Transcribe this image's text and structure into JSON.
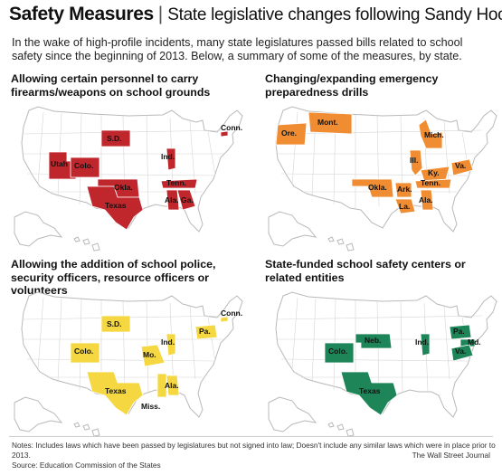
{
  "header": {
    "title": "Safety Measures",
    "separator": "|",
    "subtitle": "State legislative changes following Sandy Hook"
  },
  "intro": "In the wake of high-profile incidents, many state legislatures passed bills related to school safety since the beginning of 2013. Below, a summary of some of the measures, by state.",
  "colors": {
    "map_fill": "#ffffff",
    "map_stroke": "#b9b9b9",
    "firearms": "#c0272d",
    "drills": "#f08d32",
    "police": "#f5d741",
    "centers": "#1e8558"
  },
  "panels": [
    {
      "id": "firearms",
      "heading": "Allowing certain personnel to carry firearms/weapons on school grounds",
      "color_key": "firearms",
      "states": [
        "Utah",
        "Colo.",
        "S.D.",
        "Okla.",
        "Texas",
        "Ind.",
        "Tenn.",
        "Ala.",
        "Ga.",
        "Conn."
      ]
    },
    {
      "id": "drills",
      "heading": "Changing/expanding emergency preparedness drills",
      "color_key": "drills",
      "states": [
        "Ore.",
        "Mont.",
        "Mich.",
        "Ill.",
        "Ky.",
        "Va.",
        "Okla.",
        "Ark.",
        "Tenn.",
        "La.",
        "Ala."
      ]
    },
    {
      "id": "police",
      "heading": "Allowing the addition of school police, security officers, resource officers or volunteers",
      "color_key": "police",
      "states": [
        "S.D.",
        "Colo.",
        "Mo.",
        "Ind.",
        "Pa.",
        "Conn.",
        "Texas",
        "Ala.",
        "Miss."
      ]
    },
    {
      "id": "centers",
      "heading": "State-funded school safety centers or related entities",
      "color_key": "centers",
      "states": [
        "Neb.",
        "Colo.",
        "Ind.",
        "Pa.",
        "Md.",
        "Va.",
        "Texas"
      ]
    }
  ],
  "footer": {
    "notes": "Notes: Includes laws which have been passed by legislatures but not signed into law; Doesn't include any similar laws which were in place prior to 2013.",
    "source": "Source: Education Commission of the States",
    "credit": "The Wall Street Journal"
  }
}
